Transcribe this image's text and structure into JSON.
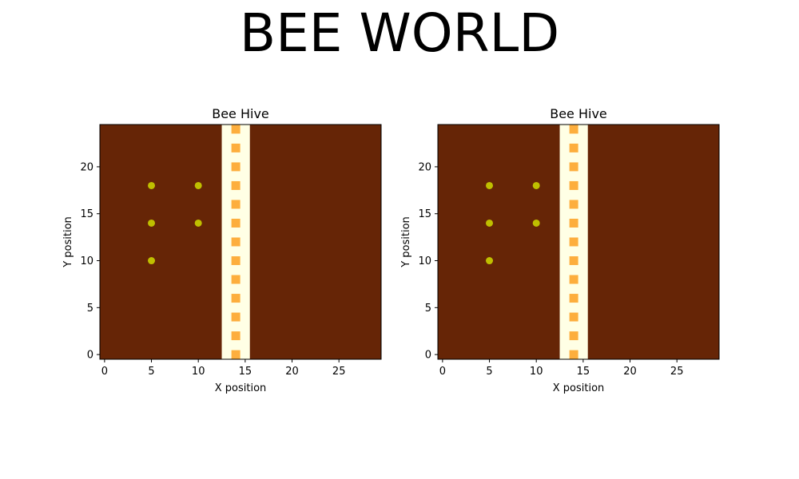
{
  "title": "BEE WORLD",
  "colors": {
    "background": "#662506",
    "stripe": "#ffffe5",
    "flower": "#fdae3d",
    "bee": "#bfbf00"
  },
  "chart_data": [
    {
      "type": "scatter",
      "title": "Bee Hive",
      "xlabel": "X position",
      "ylabel": "Y position",
      "xlim": [
        -0.5,
        29.5
      ],
      "ylim": [
        -0.5,
        24.5
      ],
      "xticks": [
        0,
        5,
        10,
        15,
        20,
        25
      ],
      "yticks": [
        0,
        5,
        10,
        15,
        20
      ],
      "grid": false,
      "background_band": {
        "x_range": [
          12.5,
          15.5
        ]
      },
      "series": [
        {
          "marker": "square",
          "color": "#fdae3d",
          "points": [
            [
              14,
              0
            ],
            [
              14,
              2
            ],
            [
              14,
              4
            ],
            [
              14,
              6
            ],
            [
              14,
              8
            ],
            [
              14,
              10
            ],
            [
              14,
              12
            ],
            [
              14,
              14
            ],
            [
              14,
              16
            ],
            [
              14,
              18
            ],
            [
              14,
              20
            ],
            [
              14,
              22
            ],
            [
              14,
              24
            ]
          ]
        },
        {
          "marker": "circle",
          "color": "#bfbf00",
          "points": [
            [
              5,
              10
            ],
            [
              5,
              14
            ],
            [
              5,
              18
            ],
            [
              10,
              14
            ],
            [
              10,
              18
            ]
          ]
        }
      ]
    },
    {
      "type": "scatter",
      "title": "Bee Hive",
      "xlabel": "X position",
      "ylabel": "Y position",
      "xlim": [
        -0.5,
        29.5
      ],
      "ylim": [
        -0.5,
        24.5
      ],
      "xticks": [
        0,
        5,
        10,
        15,
        20,
        25
      ],
      "yticks": [
        0,
        5,
        10,
        15,
        20
      ],
      "grid": false,
      "background_band": {
        "x_range": [
          12.5,
          15.5
        ]
      },
      "series": [
        {
          "marker": "square",
          "color": "#fdae3d",
          "points": [
            [
              14,
              0
            ],
            [
              14,
              2
            ],
            [
              14,
              4
            ],
            [
              14,
              6
            ],
            [
              14,
              8
            ],
            [
              14,
              10
            ],
            [
              14,
              12
            ],
            [
              14,
              14
            ],
            [
              14,
              16
            ],
            [
              14,
              18
            ],
            [
              14,
              20
            ],
            [
              14,
              22
            ],
            [
              14,
              24
            ]
          ]
        },
        {
          "marker": "circle",
          "color": "#bfbf00",
          "points": [
            [
              5,
              10
            ],
            [
              5,
              14
            ],
            [
              5,
              18
            ],
            [
              10,
              14
            ],
            [
              10,
              18
            ]
          ]
        }
      ]
    }
  ]
}
